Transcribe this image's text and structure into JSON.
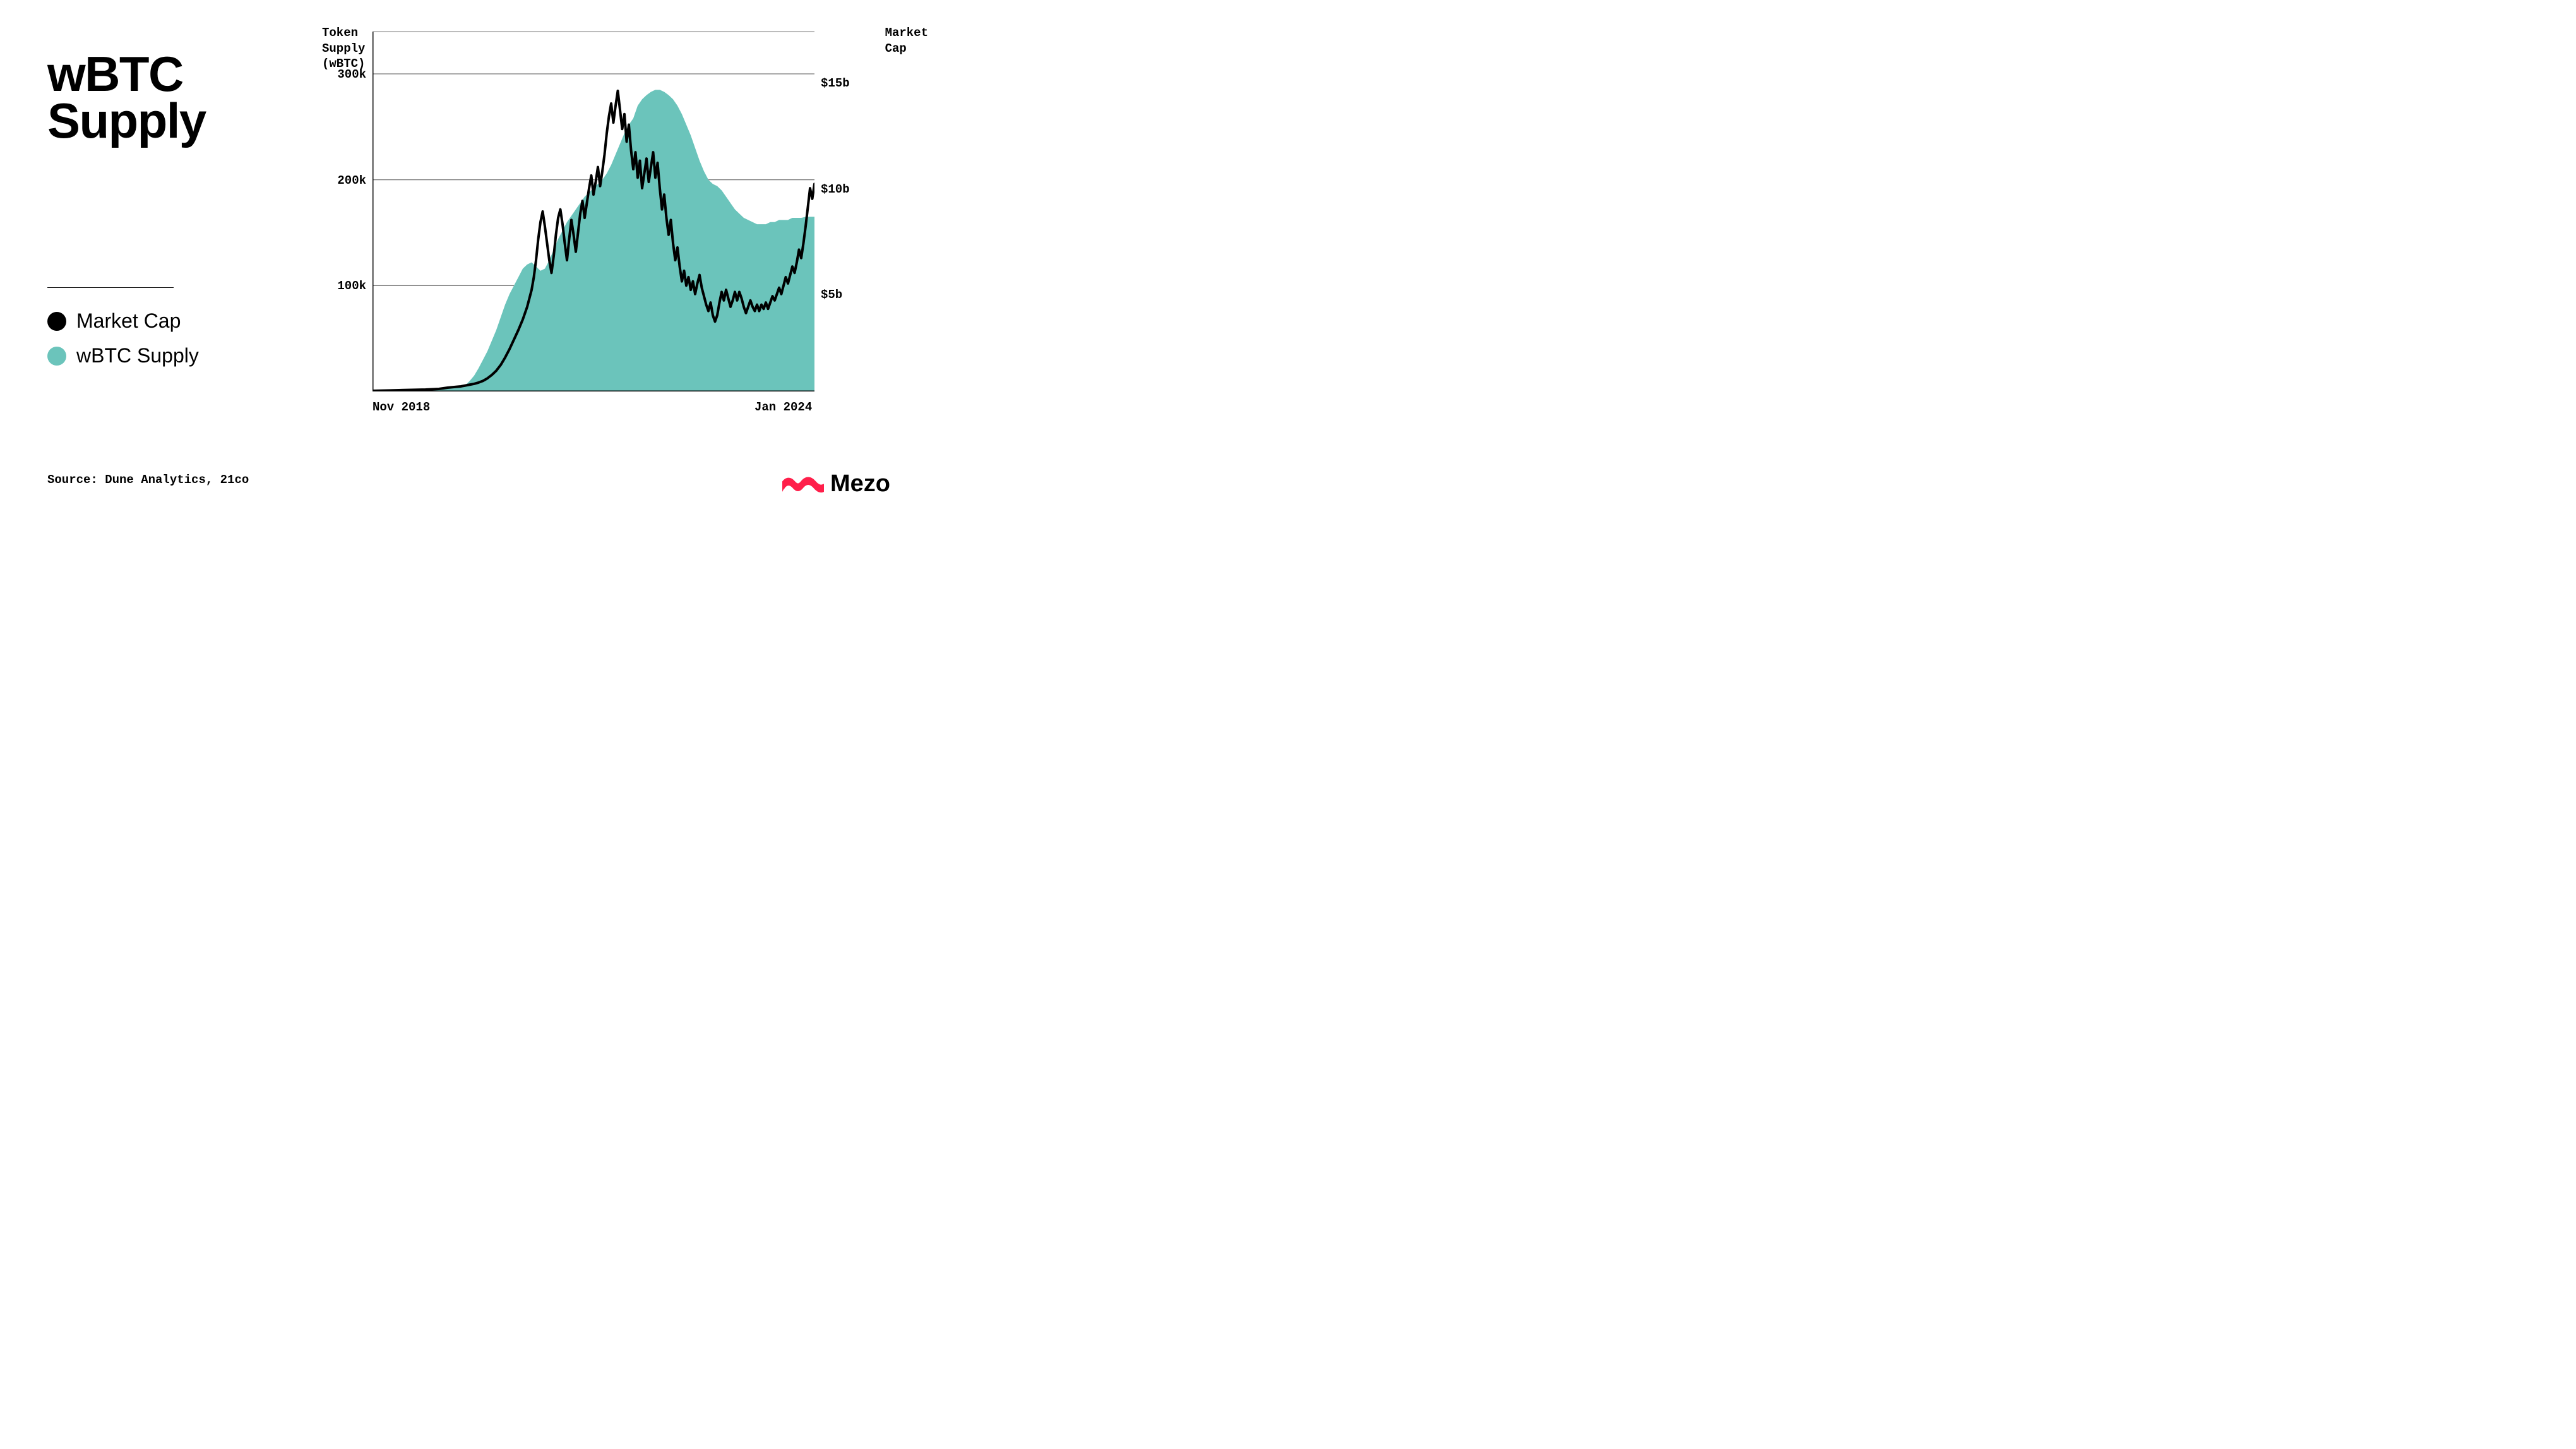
{
  "title_line1": "wBTC",
  "title_line2": "Supply",
  "legend": {
    "items": [
      {
        "label": "Market Cap",
        "color": "#000000"
      },
      {
        "label": "wBTC Supply",
        "color": "#6bc4bb"
      }
    ]
  },
  "source": "Source: Dune Analytics, 21co",
  "brand": {
    "name": "Mezo",
    "color": "#ff1f4a"
  },
  "chart": {
    "type": "dual-axis-line-area",
    "background_color": "#ffffff",
    "grid_color": "#555555",
    "grid_stroke": 1,
    "axis_color": "#000000",
    "axis_stroke": 1.5,
    "left_axis": {
      "title": "Token\nSupply\n(wBTC)",
      "min": 0,
      "max": 340000,
      "ticks": [
        {
          "v": 100000,
          "label": "100k"
        },
        {
          "v": 200000,
          "label": "200k"
        },
        {
          "v": 300000,
          "label": "300k"
        }
      ]
    },
    "right_axis": {
      "title": "Market\nCap",
      "min": 0,
      "max": 17000000000,
      "ticks": [
        {
          "v": 5000000000,
          "label": "$5b"
        },
        {
          "v": 10000000000,
          "label": "$10b"
        },
        {
          "v": 15000000000,
          "label": "$15b"
        }
      ]
    },
    "x_axis": {
      "min": 0,
      "max": 100,
      "ticks": [
        {
          "v": 0,
          "label": "Nov 2018"
        },
        {
          "v": 100,
          "label": "Jan 2024"
        }
      ]
    },
    "area_series": {
      "name": "wBTC Supply",
      "color": "#6bc4bb",
      "opacity": 1,
      "axis": "left",
      "points": [
        [
          0,
          1000
        ],
        [
          5,
          1500
        ],
        [
          10,
          2000
        ],
        [
          14,
          2500
        ],
        [
          17,
          3000
        ],
        [
          19,
          3500
        ],
        [
          20,
          4000
        ],
        [
          21,
          6000
        ],
        [
          22,
          10000
        ],
        [
          23,
          15000
        ],
        [
          24,
          22000
        ],
        [
          25,
          30000
        ],
        [
          26,
          38000
        ],
        [
          27,
          48000
        ],
        [
          28,
          58000
        ],
        [
          29,
          70000
        ],
        [
          30,
          82000
        ],
        [
          31,
          92000
        ],
        [
          32,
          100000
        ],
        [
          33,
          108000
        ],
        [
          34,
          116000
        ],
        [
          35,
          120000
        ],
        [
          36,
          122000
        ],
        [
          37,
          118000
        ],
        [
          38,
          114000
        ],
        [
          39,
          116000
        ],
        [
          40,
          124000
        ],
        [
          41,
          134000
        ],
        [
          42,
          144000
        ],
        [
          43,
          152000
        ],
        [
          44,
          160000
        ],
        [
          45,
          166000
        ],
        [
          46,
          172000
        ],
        [
          47,
          178000
        ],
        [
          48,
          184000
        ],
        [
          49,
          188000
        ],
        [
          50,
          192000
        ],
        [
          51,
          196000
        ],
        [
          52,
          200000
        ],
        [
          53,
          206000
        ],
        [
          54,
          214000
        ],
        [
          55,
          224000
        ],
        [
          56,
          234000
        ],
        [
          57,
          244000
        ],
        [
          58,
          252000
        ],
        [
          59,
          258000
        ],
        [
          59.5,
          264000
        ],
        [
          60,
          270000
        ],
        [
          61,
          276000
        ],
        [
          62,
          280000
        ],
        [
          63,
          283000
        ],
        [
          64,
          285000
        ],
        [
          65,
          285000
        ],
        [
          66,
          283000
        ],
        [
          67,
          280000
        ],
        [
          68,
          276000
        ],
        [
          69,
          270000
        ],
        [
          70,
          262000
        ],
        [
          71,
          252000
        ],
        [
          72,
          242000
        ],
        [
          73,
          230000
        ],
        [
          74,
          218000
        ],
        [
          75,
          208000
        ],
        [
          76,
          200000
        ],
        [
          77,
          196000
        ],
        [
          78,
          194000
        ],
        [
          79,
          190000
        ],
        [
          80,
          184000
        ],
        [
          81,
          178000
        ],
        [
          82,
          172000
        ],
        [
          83,
          168000
        ],
        [
          84,
          164000
        ],
        [
          85,
          162000
        ],
        [
          86,
          160000
        ],
        [
          87,
          158000
        ],
        [
          88,
          158000
        ],
        [
          89,
          158000
        ],
        [
          90,
          160000
        ],
        [
          91,
          160000
        ],
        [
          92,
          162000
        ],
        [
          93,
          162000
        ],
        [
          94,
          162000
        ],
        [
          95,
          164000
        ],
        [
          96,
          164000
        ],
        [
          97,
          164000
        ],
        [
          98,
          165000
        ],
        [
          99,
          165000
        ],
        [
          100,
          165000
        ]
      ]
    },
    "line_series": {
      "name": "Market Cap",
      "color": "#000000",
      "stroke_width": 4,
      "axis": "right",
      "points": [
        [
          0,
          30000000
        ],
        [
          4,
          50000000
        ],
        [
          8,
          70000000
        ],
        [
          12,
          90000000
        ],
        [
          15,
          120000000
        ],
        [
          17,
          180000000
        ],
        [
          19,
          220000000
        ],
        [
          20,
          240000000
        ],
        [
          21,
          280000000
        ],
        [
          22,
          320000000
        ],
        [
          23,
          360000000
        ],
        [
          24,
          420000000
        ],
        [
          25,
          500000000
        ],
        [
          26,
          620000000
        ],
        [
          27,
          780000000
        ],
        [
          28,
          980000000
        ],
        [
          29,
          1250000000
        ],
        [
          30,
          1600000000
        ],
        [
          31,
          2000000000
        ],
        [
          32,
          2450000000
        ],
        [
          33,
          2900000000
        ],
        [
          34,
          3400000000
        ],
        [
          35,
          4000000000
        ],
        [
          36,
          4800000000
        ],
        [
          36.5,
          5400000000
        ],
        [
          37,
          6200000000
        ],
        [
          37.5,
          7200000000
        ],
        [
          38,
          8000000000
        ],
        [
          38.5,
          8500000000
        ],
        [
          39,
          7800000000
        ],
        [
          39.5,
          7000000000
        ],
        [
          40,
          6200000000
        ],
        [
          40.5,
          5600000000
        ],
        [
          41,
          6400000000
        ],
        [
          41.5,
          7400000000
        ],
        [
          42,
          8200000000
        ],
        [
          42.5,
          8600000000
        ],
        [
          43,
          7900000000
        ],
        [
          43.5,
          7000000000
        ],
        [
          44,
          6200000000
        ],
        [
          44.5,
          7200000000
        ],
        [
          45,
          8100000000
        ],
        [
          45.5,
          7400000000
        ],
        [
          46,
          6600000000
        ],
        [
          46.5,
          7500000000
        ],
        [
          47,
          8400000000
        ],
        [
          47.5,
          9000000000
        ],
        [
          48,
          8200000000
        ],
        [
          48.5,
          8900000000
        ],
        [
          49,
          9600000000
        ],
        [
          49.5,
          10200000000
        ],
        [
          50,
          9300000000
        ],
        [
          50.5,
          9900000000
        ],
        [
          51,
          10600000000
        ],
        [
          51.5,
          9700000000
        ],
        [
          52,
          10400000000
        ],
        [
          52.5,
          11200000000
        ],
        [
          53,
          12200000000
        ],
        [
          53.5,
          13000000000
        ],
        [
          54,
          13600000000
        ],
        [
          54.5,
          12700000000
        ],
        [
          55,
          13500000000
        ],
        [
          55.5,
          14200000000
        ],
        [
          56,
          13300000000
        ],
        [
          56.5,
          12400000000
        ],
        [
          57,
          13100000000
        ],
        [
          57.5,
          11800000000
        ],
        [
          58,
          12600000000
        ],
        [
          58.5,
          11400000000
        ],
        [
          59,
          10500000000
        ],
        [
          59.5,
          11300000000
        ],
        [
          60,
          10100000000
        ],
        [
          60.5,
          10900000000
        ],
        [
          61,
          9600000000
        ],
        [
          61.5,
          10300000000
        ],
        [
          62,
          11000000000
        ],
        [
          62.5,
          9900000000
        ],
        [
          63,
          10600000000
        ],
        [
          63.5,
          11300000000
        ],
        [
          64,
          10100000000
        ],
        [
          64.5,
          10800000000
        ],
        [
          65,
          9600000000
        ],
        [
          65.5,
          8600000000
        ],
        [
          66,
          9300000000
        ],
        [
          66.5,
          8200000000
        ],
        [
          67,
          7400000000
        ],
        [
          67.5,
          8100000000
        ],
        [
          68,
          7000000000
        ],
        [
          68.5,
          6200000000
        ],
        [
          69,
          6800000000
        ],
        [
          69.5,
          5900000000
        ],
        [
          70,
          5200000000
        ],
        [
          70.5,
          5700000000
        ],
        [
          71,
          5000000000
        ],
        [
          71.5,
          5400000000
        ],
        [
          72,
          4800000000
        ],
        [
          72.5,
          5200000000
        ],
        [
          73,
          4600000000
        ],
        [
          73.5,
          5100000000
        ],
        [
          74,
          5500000000
        ],
        [
          74.5,
          4900000000
        ],
        [
          75,
          4500000000
        ],
        [
          75.5,
          4100000000
        ],
        [
          76,
          3800000000
        ],
        [
          76.5,
          4200000000
        ],
        [
          77,
          3600000000
        ],
        [
          77.5,
          3300000000
        ],
        [
          78,
          3600000000
        ],
        [
          78.5,
          4200000000
        ],
        [
          79,
          4700000000
        ],
        [
          79.5,
          4300000000
        ],
        [
          80,
          4800000000
        ],
        [
          80.5,
          4400000000
        ],
        [
          81,
          4000000000
        ],
        [
          81.5,
          4300000000
        ],
        [
          82,
          4700000000
        ],
        [
          82.5,
          4300000000
        ],
        [
          83,
          4700000000
        ],
        [
          83.5,
          4400000000
        ],
        [
          84,
          4000000000
        ],
        [
          84.5,
          3700000000
        ],
        [
          85,
          4000000000
        ],
        [
          85.5,
          4300000000
        ],
        [
          86,
          4000000000
        ],
        [
          86.5,
          3800000000
        ],
        [
          87,
          4100000000
        ],
        [
          87.5,
          3800000000
        ],
        [
          88,
          4100000000
        ],
        [
          88.5,
          3900000000
        ],
        [
          89,
          4200000000
        ],
        [
          89.5,
          3900000000
        ],
        [
          90,
          4200000000
        ],
        [
          90.5,
          4500000000
        ],
        [
          91,
          4300000000
        ],
        [
          91.5,
          4600000000
        ],
        [
          92,
          4900000000
        ],
        [
          92.5,
          4600000000
        ],
        [
          93,
          5000000000
        ],
        [
          93.5,
          5400000000
        ],
        [
          94,
          5100000000
        ],
        [
          94.5,
          5500000000
        ],
        [
          95,
          5900000000
        ],
        [
          95.5,
          5600000000
        ],
        [
          96,
          6100000000
        ],
        [
          96.5,
          6700000000
        ],
        [
          97,
          6300000000
        ],
        [
          97.5,
          7000000000
        ],
        [
          98,
          7800000000
        ],
        [
          98.5,
          8700000000
        ],
        [
          99,
          9600000000
        ],
        [
          99.5,
          9100000000
        ],
        [
          100,
          9800000000
        ]
      ]
    }
  }
}
